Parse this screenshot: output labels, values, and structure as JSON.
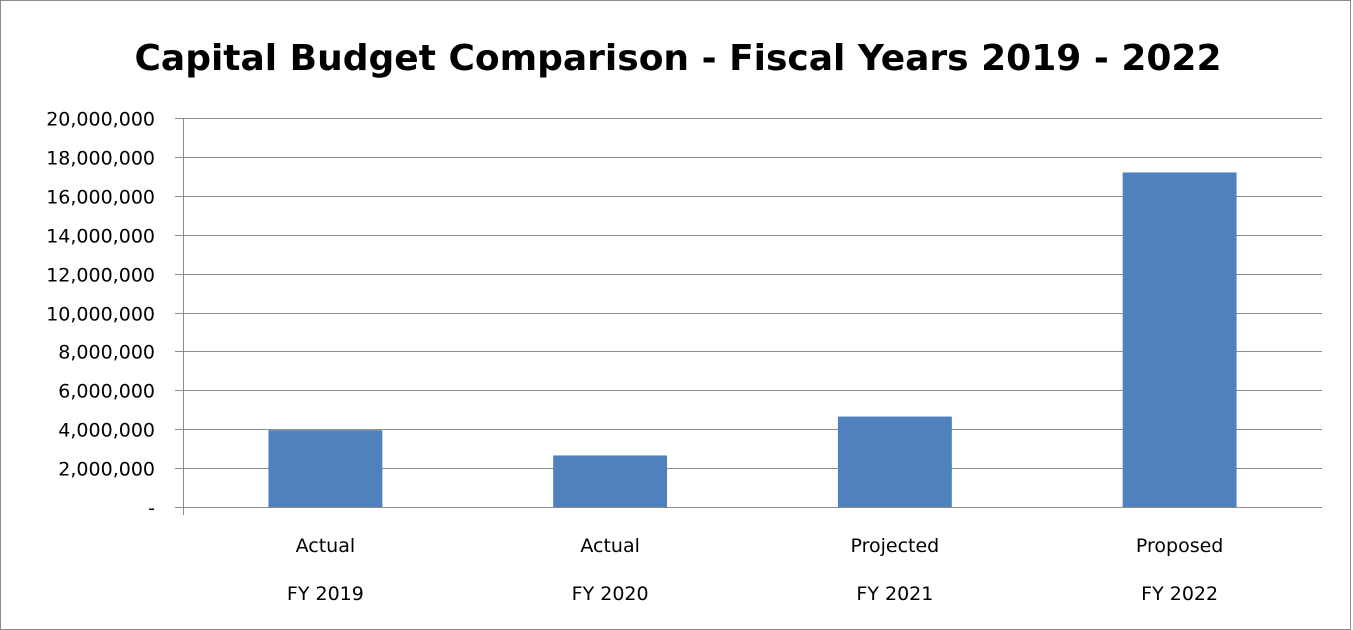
{
  "chart_data": {
    "type": "bar",
    "title": "Capital Budget Comparison - Fiscal Years 2019 - 2022",
    "categories": [
      {
        "label_line1": "Actual",
        "label_line2": "FY 2019"
      },
      {
        "label_line1": "Actual",
        "label_line2": "FY 2020"
      },
      {
        "label_line1": "Projected",
        "label_line2": "FY 2021"
      },
      {
        "label_line1": "Proposed",
        "label_line2": "FY 2022"
      }
    ],
    "values": [
      3950000,
      2650000,
      4650000,
      17200000
    ],
    "ylim": [
      0,
      20000000
    ],
    "yticks": [
      {
        "value": 0,
        "label": "-"
      },
      {
        "value": 2000000,
        "label": "2,000,000"
      },
      {
        "value": 4000000,
        "label": "4,000,000"
      },
      {
        "value": 6000000,
        "label": "6,000,000"
      },
      {
        "value": 8000000,
        "label": "8,000,000"
      },
      {
        "value": 10000000,
        "label": "10,000,000"
      },
      {
        "value": 12000000,
        "label": "12,000,000"
      },
      {
        "value": 14000000,
        "label": "14,000,000"
      },
      {
        "value": 16000000,
        "label": "16,000,000"
      },
      {
        "value": 18000000,
        "label": "18,000,000"
      },
      {
        "value": 20000000,
        "label": "20,000,000"
      }
    ],
    "grid": true,
    "legend": "none",
    "colors": {
      "bar": "#4f81bd",
      "grid": "#8c8c8c",
      "axis": "#8c8c8c"
    }
  }
}
